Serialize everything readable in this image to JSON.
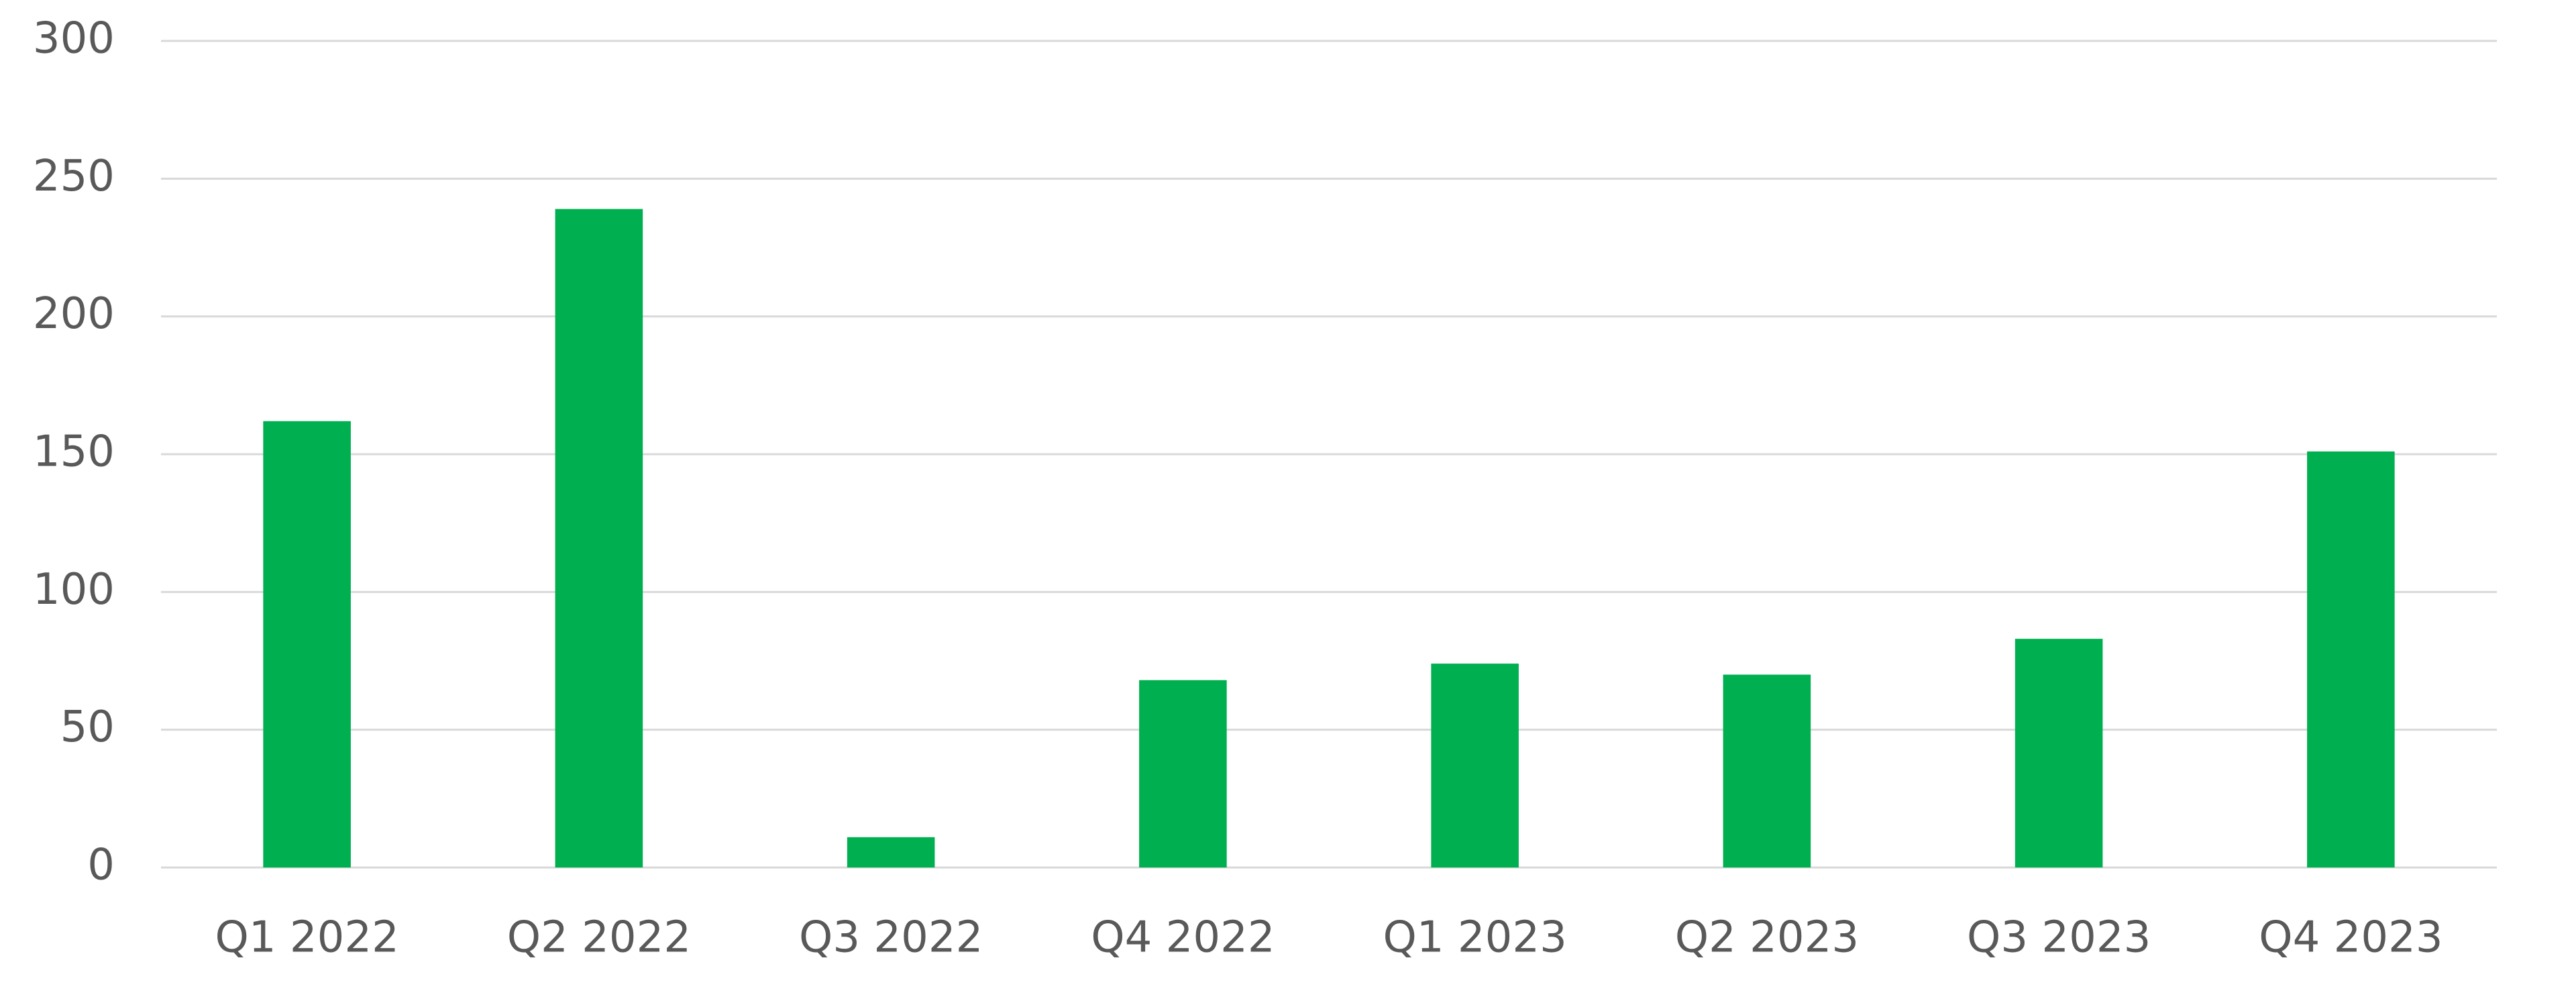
{
  "chart_data": {
    "type": "bar",
    "categories": [
      "Q1 2022",
      "Q2 2022",
      "Q3 2022",
      "Q4 2022",
      "Q1 2023",
      "Q2 2023",
      "Q3 2023",
      "Q4 2023"
    ],
    "values": [
      162,
      239,
      11,
      68,
      74,
      70,
      83,
      151
    ],
    "color": "#00b050",
    "ylim": [
      0,
      300
    ],
    "yticks": [
      0,
      50,
      100,
      150,
      200,
      250,
      300
    ],
    "grid": true
  }
}
